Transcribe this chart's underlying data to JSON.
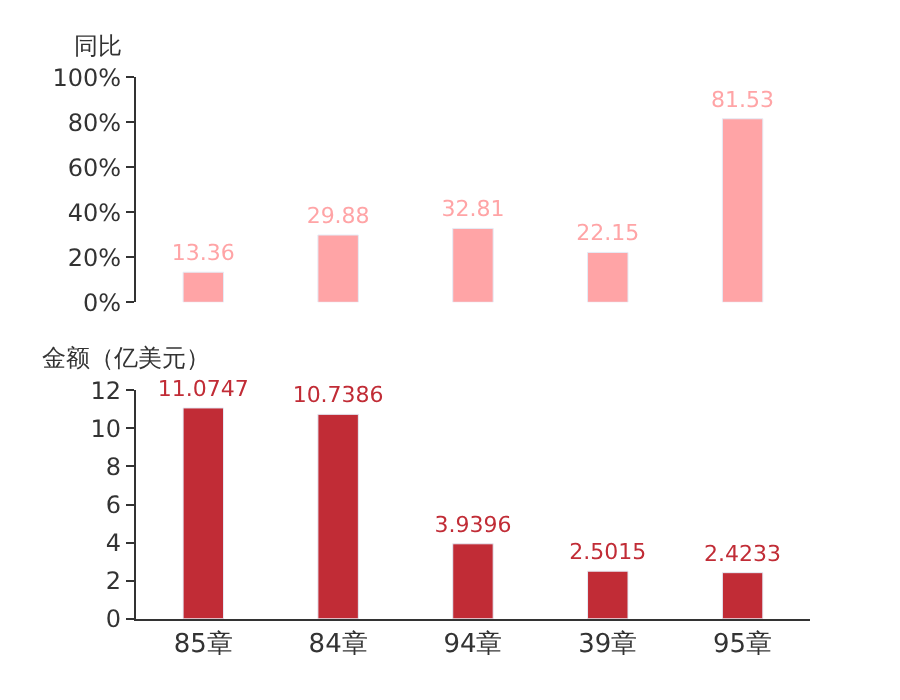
{
  "chart_data": [
    {
      "type": "bar",
      "ylabel": "同比",
      "categories": [
        null,
        null,
        null,
        null,
        null
      ],
      "values": [
        13.36,
        29.88,
        32.81,
        22.15,
        81.53
      ],
      "color": "#ffa4a6",
      "ylim": [
        0,
        100
      ],
      "yticks": [
        {
          "value": 0,
          "label": "0%"
        },
        {
          "value": 20,
          "label": "20%"
        },
        {
          "value": 40,
          "label": "40%"
        },
        {
          "value": 60,
          "label": "60%"
        },
        {
          "value": 80,
          "label": "80%"
        },
        {
          "value": 100,
          "label": "100%"
        }
      ],
      "data_labels": true,
      "tick_labels": "y"
    },
    {
      "type": "bar",
      "ylabel": "金额（亿美元）",
      "categories": [
        "85章",
        "84章",
        "94章",
        "39章",
        "95章"
      ],
      "values": [
        11.0747,
        10.7386,
        3.9396,
        2.5015,
        2.4233
      ],
      "color": "#c12c36",
      "ylim": [
        0,
        12
      ],
      "yticks": [
        0,
        2,
        4,
        6,
        8,
        10,
        12
      ],
      "data_labels": true
    }
  ]
}
